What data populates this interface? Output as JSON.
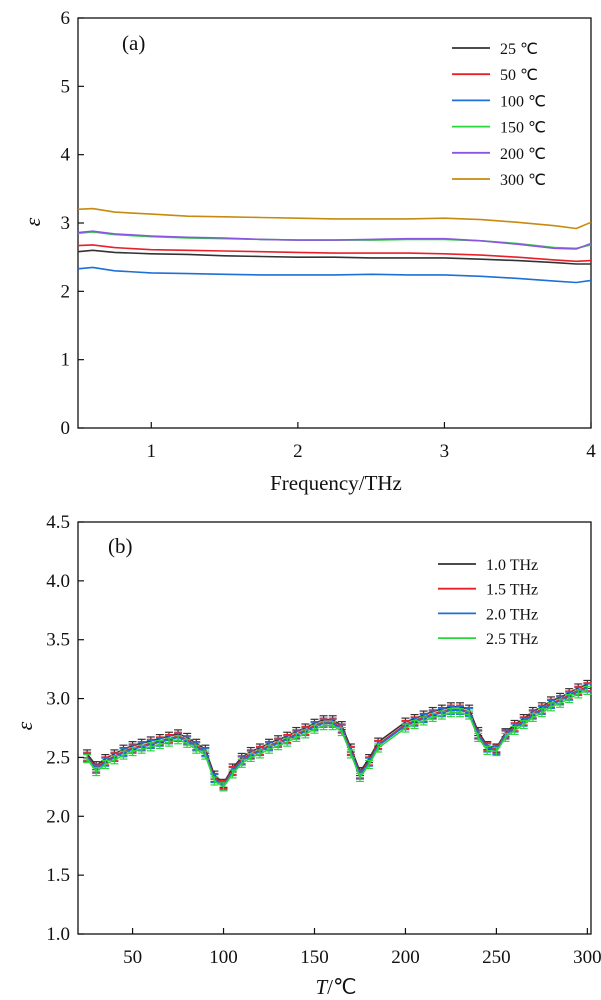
{
  "chart_data": [
    {
      "type": "line",
      "panel_label": "(a)",
      "xlabel": "Frequency/THz",
      "ylabel": "ε",
      "xlim": [
        0.5,
        4.0
      ],
      "ylim": [
        0,
        6
      ],
      "x_ticks": [
        1,
        2,
        3,
        4
      ],
      "y_ticks": [
        0,
        1,
        2,
        3,
        4,
        5,
        6
      ],
      "grid": false,
      "legend_position": "top-right",
      "x": [
        0.5,
        0.6,
        0.75,
        1.0,
        1.25,
        1.5,
        1.75,
        2.0,
        2.25,
        2.5,
        2.75,
        3.0,
        3.25,
        3.5,
        3.75,
        3.9,
        4.0
      ],
      "series": [
        {
          "name": "25 ℃",
          "color": "#333333",
          "values": [
            2.58,
            2.6,
            2.57,
            2.55,
            2.54,
            2.52,
            2.51,
            2.5,
            2.5,
            2.49,
            2.49,
            2.49,
            2.47,
            2.45,
            2.42,
            2.4,
            2.4
          ]
        },
        {
          "name": "50 ℃",
          "color": "#e8202a",
          "values": [
            2.67,
            2.68,
            2.64,
            2.61,
            2.6,
            2.59,
            2.58,
            2.57,
            2.56,
            2.56,
            2.56,
            2.55,
            2.53,
            2.5,
            2.46,
            2.44,
            2.45
          ]
        },
        {
          "name": "100 ℃",
          "color": "#1e6fd8",
          "values": [
            2.33,
            2.35,
            2.3,
            2.27,
            2.26,
            2.25,
            2.24,
            2.24,
            2.24,
            2.25,
            2.24,
            2.24,
            2.22,
            2.19,
            2.15,
            2.13,
            2.16
          ]
        },
        {
          "name": "150 ℃",
          "color": "#2bd63a",
          "values": [
            2.85,
            2.87,
            2.83,
            2.8,
            2.78,
            2.77,
            2.76,
            2.75,
            2.75,
            2.75,
            2.76,
            2.76,
            2.74,
            2.7,
            2.64,
            2.63,
            2.68
          ]
        },
        {
          "name": "200 ℃",
          "color": "#8a55e0",
          "values": [
            2.86,
            2.88,
            2.84,
            2.81,
            2.79,
            2.78,
            2.76,
            2.75,
            2.75,
            2.76,
            2.77,
            2.77,
            2.74,
            2.69,
            2.63,
            2.62,
            2.7
          ]
        },
        {
          "name": "300 ℃",
          "color": "#c88a0e",
          "values": [
            3.2,
            3.21,
            3.16,
            3.13,
            3.1,
            3.09,
            3.08,
            3.07,
            3.06,
            3.06,
            3.06,
            3.07,
            3.05,
            3.01,
            2.96,
            2.92,
            3.01
          ]
        }
      ]
    },
    {
      "type": "line",
      "panel_label": "(b)",
      "xlabel_italic": "T",
      "xlabel_rest": "/℃",
      "ylabel": "ε",
      "xlim": [
        20,
        302
      ],
      "ylim": [
        1.0,
        4.5
      ],
      "x_ticks": [
        50,
        100,
        150,
        200,
        250,
        300
      ],
      "y_ticks": [
        1.0,
        1.5,
        2.0,
        2.5,
        3.0,
        3.5,
        4.0,
        4.5
      ],
      "grid": false,
      "legend_position": "top-right",
      "error_bars": true,
      "x": [
        25,
        30,
        35,
        40,
        45,
        50,
        55,
        60,
        65,
        70,
        75,
        80,
        85,
        90,
        95,
        100,
        105,
        110,
        115,
        120,
        125,
        130,
        135,
        140,
        145,
        150,
        155,
        160,
        165,
        170,
        175,
        180,
        185,
        200,
        205,
        210,
        215,
        220,
        225,
        230,
        235,
        240,
        245,
        250,
        255,
        260,
        265,
        270,
        275,
        280,
        285,
        290,
        295,
        300
      ],
      "series": [
        {
          "name": "1.0 THz",
          "color": "#333333",
          "values": [
            2.53,
            2.43,
            2.49,
            2.53,
            2.57,
            2.6,
            2.62,
            2.64,
            2.66,
            2.68,
            2.7,
            2.67,
            2.62,
            2.57,
            2.35,
            2.28,
            2.41,
            2.5,
            2.55,
            2.58,
            2.62,
            2.65,
            2.68,
            2.72,
            2.75,
            2.79,
            2.82,
            2.82,
            2.77,
            2.58,
            2.38,
            2.49,
            2.63,
            2.8,
            2.83,
            2.86,
            2.89,
            2.91,
            2.93,
            2.93,
            2.91,
            2.72,
            2.6,
            2.58,
            2.71,
            2.78,
            2.83,
            2.89,
            2.93,
            2.98,
            3.01,
            3.05,
            3.09,
            3.12
          ]
        },
        {
          "name": "1.5 THz",
          "color": "#e8202a",
          "values": [
            2.51,
            2.41,
            2.47,
            2.51,
            2.55,
            2.58,
            2.6,
            2.62,
            2.64,
            2.66,
            2.68,
            2.65,
            2.6,
            2.55,
            2.33,
            2.27,
            2.39,
            2.48,
            2.53,
            2.56,
            2.6,
            2.63,
            2.66,
            2.7,
            2.73,
            2.77,
            2.8,
            2.8,
            2.75,
            2.56,
            2.36,
            2.47,
            2.61,
            2.78,
            2.81,
            2.84,
            2.87,
            2.89,
            2.91,
            2.91,
            2.89,
            2.7,
            2.59,
            2.57,
            2.7,
            2.76,
            2.81,
            2.87,
            2.91,
            2.96,
            2.99,
            3.03,
            3.07,
            3.1
          ]
        },
        {
          "name": "2.0 THz",
          "color": "#1e6fd8",
          "values": [
            2.5,
            2.4,
            2.46,
            2.5,
            2.54,
            2.57,
            2.59,
            2.61,
            2.63,
            2.65,
            2.67,
            2.64,
            2.59,
            2.54,
            2.32,
            2.26,
            2.38,
            2.47,
            2.52,
            2.55,
            2.59,
            2.62,
            2.65,
            2.69,
            2.72,
            2.76,
            2.79,
            2.79,
            2.74,
            2.55,
            2.35,
            2.46,
            2.6,
            2.77,
            2.8,
            2.83,
            2.86,
            2.88,
            2.9,
            2.9,
            2.88,
            2.69,
            2.58,
            2.56,
            2.69,
            2.75,
            2.8,
            2.86,
            2.9,
            2.95,
            2.98,
            3.02,
            3.06,
            3.09
          ]
        },
        {
          "name": "2.5 THz",
          "color": "#2bd63a",
          "values": [
            2.49,
            2.38,
            2.44,
            2.48,
            2.52,
            2.55,
            2.57,
            2.59,
            2.61,
            2.63,
            2.65,
            2.62,
            2.57,
            2.52,
            2.3,
            2.25,
            2.36,
            2.45,
            2.5,
            2.53,
            2.57,
            2.6,
            2.63,
            2.67,
            2.7,
            2.74,
            2.77,
            2.77,
            2.72,
            2.53,
            2.33,
            2.44,
            2.58,
            2.75,
            2.78,
            2.81,
            2.84,
            2.86,
            2.88,
            2.88,
            2.86,
            2.67,
            2.56,
            2.55,
            2.67,
            2.73,
            2.78,
            2.84,
            2.88,
            2.93,
            2.96,
            3.0,
            3.04,
            3.07
          ]
        }
      ]
    }
  ]
}
